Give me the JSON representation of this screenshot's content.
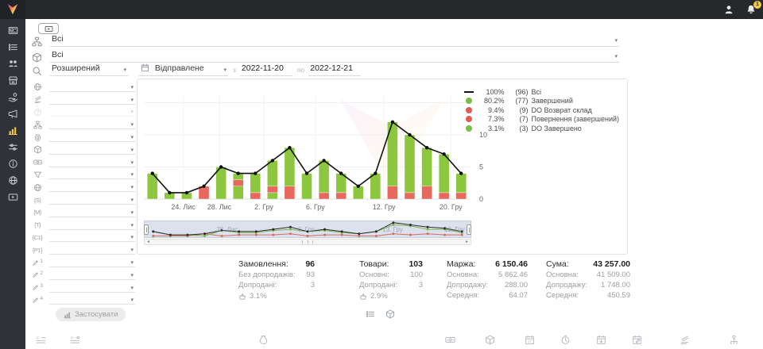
{
  "topbar": {
    "notification_badge": "1"
  },
  "top_filters": {
    "rows": [
      {
        "icon": "sitemap",
        "value": "Всі"
      },
      {
        "icon": "package",
        "value": "Всі"
      }
    ],
    "search_mode": "Розширений",
    "date_field": "Відправлене",
    "date_from_label": "з",
    "date_from": "2022-11-20",
    "date_to_label": "по",
    "date_to": "2022-12-21"
  },
  "filter_panel": {
    "rows": [
      {
        "icon": "globe"
      },
      {
        "icon": "layers"
      },
      {
        "icon": "question",
        "disabled": true
      },
      {
        "icon": "sitemap"
      },
      {
        "icon": "fingerprint"
      },
      {
        "icon": "package"
      },
      {
        "icon": "banknote"
      },
      {
        "icon": "funnel"
      },
      {
        "icon": "globe"
      },
      {
        "tag": "{S}"
      },
      {
        "tag": "{M}"
      },
      {
        "tag": "{T}"
      },
      {
        "tag": "{C1}"
      },
      {
        "tag": "{P1}"
      },
      {
        "icon": "pencil",
        "sub": "1"
      },
      {
        "icon": "pencil",
        "sub": "2"
      },
      {
        "icon": "pencil",
        "sub": "3"
      },
      {
        "icon": "pencil",
        "sub": "4"
      }
    ],
    "apply_button": "Застосувати"
  },
  "chart_data": {
    "type": "bar",
    "stacked": true,
    "overlay_line": {
      "name": "Всі",
      "values": [
        4,
        1,
        1,
        2,
        5,
        4,
        4,
        6,
        8,
        4,
        6,
        4,
        2,
        4,
        12,
        10,
        8,
        7,
        4
      ]
    },
    "bars": [
      {
        "segments": [
          [
            "green",
            4
          ]
        ]
      },
      {
        "segments": [
          [
            "green",
            1
          ]
        ]
      },
      {
        "segments": [
          [
            "green",
            1
          ]
        ]
      },
      {
        "segments": [
          [
            "red",
            2
          ]
        ]
      },
      {
        "segments": [
          [
            "green",
            5
          ]
        ]
      },
      {
        "segments": [
          [
            "green",
            2
          ],
          [
            "red",
            1
          ],
          [
            "green",
            1
          ]
        ]
      },
      {
        "segments": [
          [
            "red",
            1
          ],
          [
            "green",
            3
          ]
        ]
      },
      {
        "segments": [
          [
            "green",
            1
          ],
          [
            "red",
            1
          ],
          [
            "green",
            4
          ]
        ]
      },
      {
        "segments": [
          [
            "red",
            2
          ],
          [
            "green",
            6
          ]
        ]
      },
      {
        "segments": [
          [
            "green",
            4
          ]
        ]
      },
      {
        "segments": [
          [
            "red",
            1
          ],
          [
            "green",
            5
          ]
        ]
      },
      {
        "segments": [
          [
            "red",
            1
          ],
          [
            "green",
            3
          ]
        ]
      },
      {
        "segments": [
          [
            "green",
            2
          ]
        ]
      },
      {
        "segments": [
          [
            "green",
            4
          ]
        ]
      },
      {
        "segments": [
          [
            "red",
            2
          ],
          [
            "green",
            10
          ]
        ]
      },
      {
        "segments": [
          [
            "red",
            1
          ],
          [
            "green",
            9
          ]
        ]
      },
      {
        "segments": [
          [
            "red",
            2
          ],
          [
            "green",
            6
          ]
        ]
      },
      {
        "segments": [
          [
            "red",
            1
          ],
          [
            "green",
            6
          ]
        ]
      },
      {
        "segments": [
          [
            "red",
            1
          ],
          [
            "green",
            3
          ]
        ]
      }
    ],
    "x_tick_labels": [
      {
        "label": "24. Лис",
        "pos": 1.8
      },
      {
        "label": "28. Лис",
        "pos": 3.9
      },
      {
        "label": "2. Гру",
        "pos": 6.5
      },
      {
        "label": "6. Гру",
        "pos": 9.5
      },
      {
        "label": "12. Гру",
        "pos": 13.5
      },
      {
        "label": "20. Гру",
        "pos": 17.4
      }
    ],
    "y_ticks": [
      0,
      5,
      10
    ],
    "ylim": [
      0,
      18
    ],
    "legend": [
      {
        "swatch": "line",
        "color": "#111111",
        "pct": "100%",
        "count": "(96)",
        "label": "Всі"
      },
      {
        "swatch": "dot",
        "color": "#77c043",
        "pct": "80.2%",
        "count": "(77)",
        "label": "Завершений"
      },
      {
        "swatch": "dot",
        "color": "#e05c50",
        "pct": "9.4%",
        "count": "(9)",
        "label": "DO Возврат склад"
      },
      {
        "swatch": "dot",
        "color": "#e05c50",
        "pct": "7.3%",
        "count": "(7)",
        "label": "Повернення (завершений)"
      },
      {
        "swatch": "dot",
        "color": "#77c043",
        "pct": "3.1%",
        "count": "(3)",
        "label": "DO Завершено"
      }
    ],
    "colors": {
      "green": "#8dc63f",
      "red": "#e8685d",
      "line": "#111111"
    },
    "navigator": {
      "labels": [
        {
          "label": "28. Лис",
          "x": 0.22
        },
        {
          "label": "6. Гру",
          "x": 0.47
        },
        {
          "label": "13. Гру",
          "x": 0.73
        },
        {
          "label": "19. Гру",
          "x": 0.92
        }
      ]
    }
  },
  "stats": [
    {
      "title": "Замовлення:",
      "value": "96",
      "rows": [
        {
          "label": "Без допродажів:",
          "value": "93"
        },
        {
          "label": "Допродані:",
          "value": "3"
        }
      ],
      "basket": "3.1%"
    },
    {
      "title": "Товари:",
      "value": "103",
      "rows": [
        {
          "label": "Основні:",
          "value": "100"
        },
        {
          "label": "Допродані:",
          "value": "3"
        }
      ],
      "basket": "2.9%"
    },
    {
      "title": "Маржа:",
      "value": "6 150.46",
      "rows": [
        {
          "label": "Основна:",
          "value": "5 862.46"
        },
        {
          "label": "Допродажу:",
          "value": "288.00"
        },
        {
          "label": "Середня:",
          "value": "64.07"
        }
      ]
    },
    {
      "title": "Сума:",
      "value": "43 257.00",
      "rows": [
        {
          "label": "Основна:",
          "value": "41 509.00"
        },
        {
          "label": "Допродажу:",
          "value": "1 748.00"
        },
        {
          "label": "Середня:",
          "value": "450.59"
        }
      ]
    }
  ],
  "view_toggles": [
    {
      "icon": "list"
    },
    {
      "icon": "package"
    }
  ],
  "bottom_toolbar": [
    {
      "icon": "id-list",
      "x": 13
    },
    {
      "icon": "id-list2",
      "x": 56
    },
    {
      "icon": "jar",
      "x": 293
    },
    {
      "icon": "banknote",
      "x": 528
    },
    {
      "icon": "package",
      "x": 578
    },
    {
      "icon": "calendar-17",
      "x": 628
    },
    {
      "icon": "clock",
      "x": 673
    },
    {
      "icon": "calendar-down",
      "x": 718
    },
    {
      "icon": "calendar-edit",
      "x": 763
    },
    {
      "icon": "layers",
      "x": 823
    },
    {
      "icon": "person-sitemap",
      "x": 885
    }
  ],
  "sidebar": {
    "items": [
      {
        "icon": "card"
      },
      {
        "icon": "list"
      },
      {
        "icon": "users"
      },
      {
        "icon": "store"
      },
      {
        "icon": "hand"
      },
      {
        "icon": "megaphone"
      },
      {
        "icon": "chart",
        "active": true
      },
      {
        "icon": "sliders"
      },
      {
        "icon": "info"
      },
      {
        "icon": "world"
      },
      {
        "icon": "playbox"
      }
    ],
    "active_color": "#f2c94c"
  }
}
